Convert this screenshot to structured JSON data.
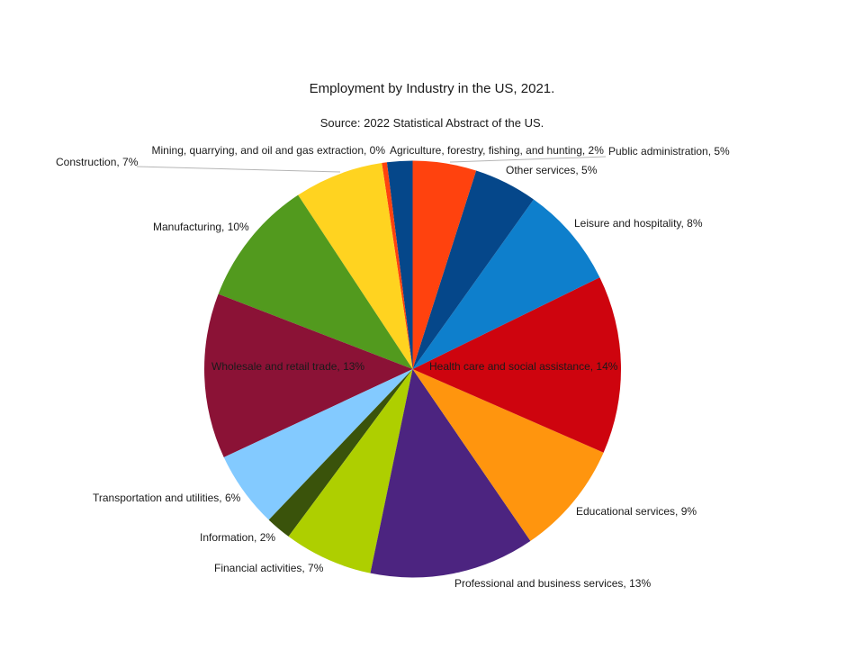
{
  "chart_data": {
    "type": "pie",
    "title": "Employment by Industry in the US, 2021.",
    "subtitle": "Source: 2022 Statistical Abstract of the US.",
    "unit": "%",
    "legend": "none",
    "label_format": "category, percent",
    "background_color": "#ffffff",
    "leader_line_color": "#b5b5b5",
    "label_text_color": "#1a1a1a",
    "slices": [
      {
        "key": "agriculture",
        "label": "Agriculture, forestry, fishing, and hunting",
        "value": 2,
        "color": "#05478a"
      },
      {
        "key": "mining",
        "label": "Mining, quarrying, and oil and gas extraction",
        "value": 0,
        "color": "#ff420e"
      },
      {
        "key": "construction",
        "label": "Construction",
        "value": 7,
        "color": "#ffd320"
      },
      {
        "key": "manufacturing",
        "label": "Manufacturing",
        "value": 10,
        "color": "#529a1e"
      },
      {
        "key": "wholesale_retail",
        "label": "Wholesale and retail trade",
        "value": 13,
        "color": "#8b1236"
      },
      {
        "key": "transportation_utilities",
        "label": "Transportation and utilities",
        "value": 6,
        "color": "#83caff"
      },
      {
        "key": "information",
        "label": "Information",
        "value": 2,
        "color": "#3a530b"
      },
      {
        "key": "financial",
        "label": "Financial activities",
        "value": 7,
        "color": "#aecf00"
      },
      {
        "key": "professional_business",
        "label": "Professional and business services",
        "value": 13,
        "color": "#4c2480"
      },
      {
        "key": "educational",
        "label": "Educational services",
        "value": 9,
        "color": "#ff950e"
      },
      {
        "key": "health_care",
        "label": "Health care and social assistance",
        "value": 14,
        "color": "#ce040e"
      },
      {
        "key": "leisure_hospitality",
        "label": "Leisure and hospitality",
        "value": 8,
        "color": "#0e7fcc"
      },
      {
        "key": "other_services",
        "label": "Other services",
        "value": 5,
        "color": "#05478a"
      },
      {
        "key": "public_administration",
        "label": "Public administration",
        "value": 5,
        "color": "#ff420e"
      }
    ]
  }
}
